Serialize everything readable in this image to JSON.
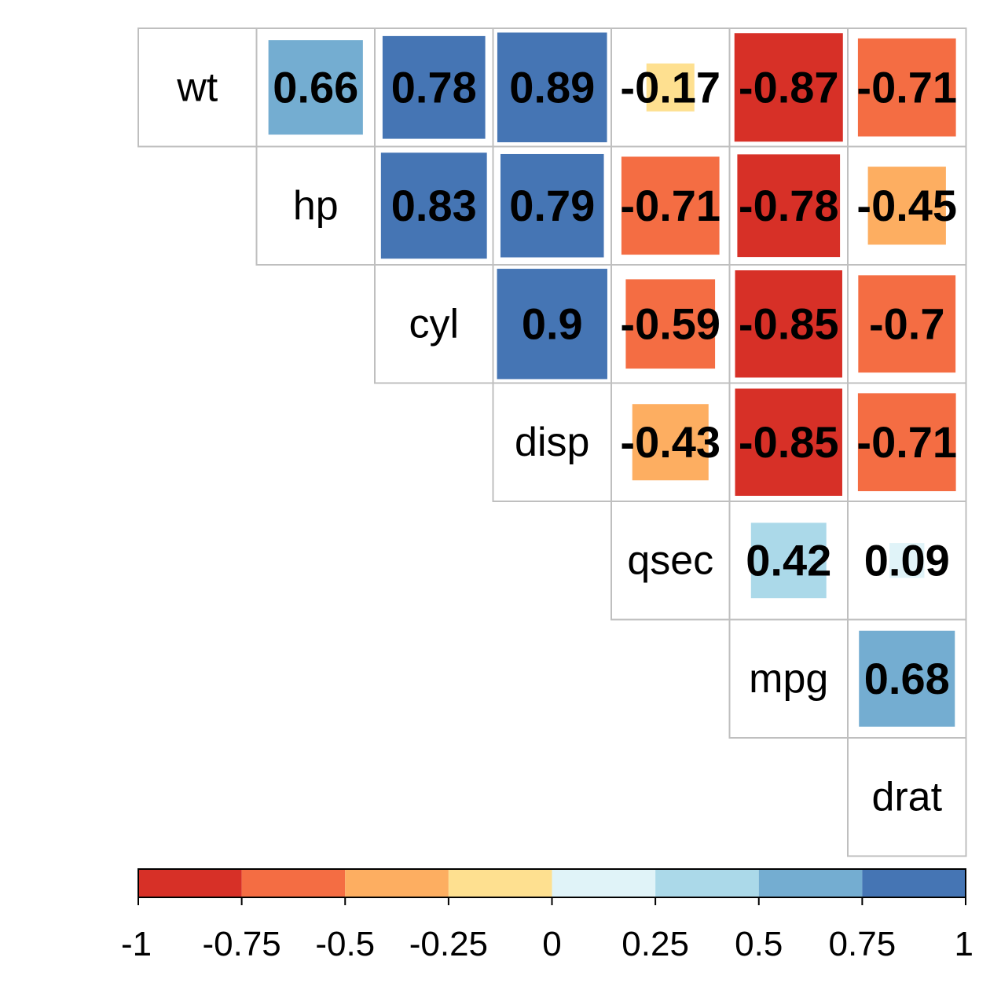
{
  "chart_data": {
    "type": "heatmap",
    "title": "",
    "variables": [
      "wt",
      "hp",
      "cyl",
      "disp",
      "qsec",
      "mpg",
      "drat"
    ],
    "matrix": [
      [
        1,
        0.66,
        0.78,
        0.89,
        -0.17,
        -0.87,
        -0.71
      ],
      [
        0.66,
        1,
        0.83,
        0.79,
        -0.71,
        -0.78,
        -0.45
      ],
      [
        0.78,
        0.83,
        1,
        0.9,
        -0.59,
        -0.85,
        -0.7
      ],
      [
        0.89,
        0.79,
        0.9,
        1,
        -0.43,
        -0.85,
        -0.71
      ],
      [
        -0.17,
        -0.71,
        -0.59,
        -0.43,
        1,
        0.42,
        0.09
      ],
      [
        -0.87,
        -0.78,
        -0.85,
        -0.85,
        0.42,
        1,
        0.68
      ],
      [
        -0.71,
        -0.45,
        -0.7,
        -0.71,
        0.09,
        0.68,
        1
      ]
    ],
    "display": "upper triangle, square size proportional to |r|, coefficient printed in each cell, variable names on diagonal",
    "color_scale": {
      "range": [
        -1,
        1
      ],
      "bins": [
        {
          "from": -1,
          "to": -0.75,
          "color": "#d73027"
        },
        {
          "from": -0.75,
          "to": -0.5,
          "color": "#f46d43"
        },
        {
          "from": -0.5,
          "to": -0.25,
          "color": "#fdae61"
        },
        {
          "from": -0.25,
          "to": 0,
          "color": "#fee090"
        },
        {
          "from": 0,
          "to": 0.25,
          "color": "#e0f3f8"
        },
        {
          "from": 0.25,
          "to": 0.5,
          "color": "#abd9e9"
        },
        {
          "from": 0.5,
          "to": 0.75,
          "color": "#74add1"
        },
        {
          "from": 0.75,
          "to": 1,
          "color": "#4575b4"
        }
      ],
      "tick_labels": [
        "-1",
        "-0.75",
        "-0.5",
        "-0.25",
        "0",
        "0.25",
        "0.5",
        "0.75",
        "1"
      ],
      "placement": "bottom"
    }
  }
}
